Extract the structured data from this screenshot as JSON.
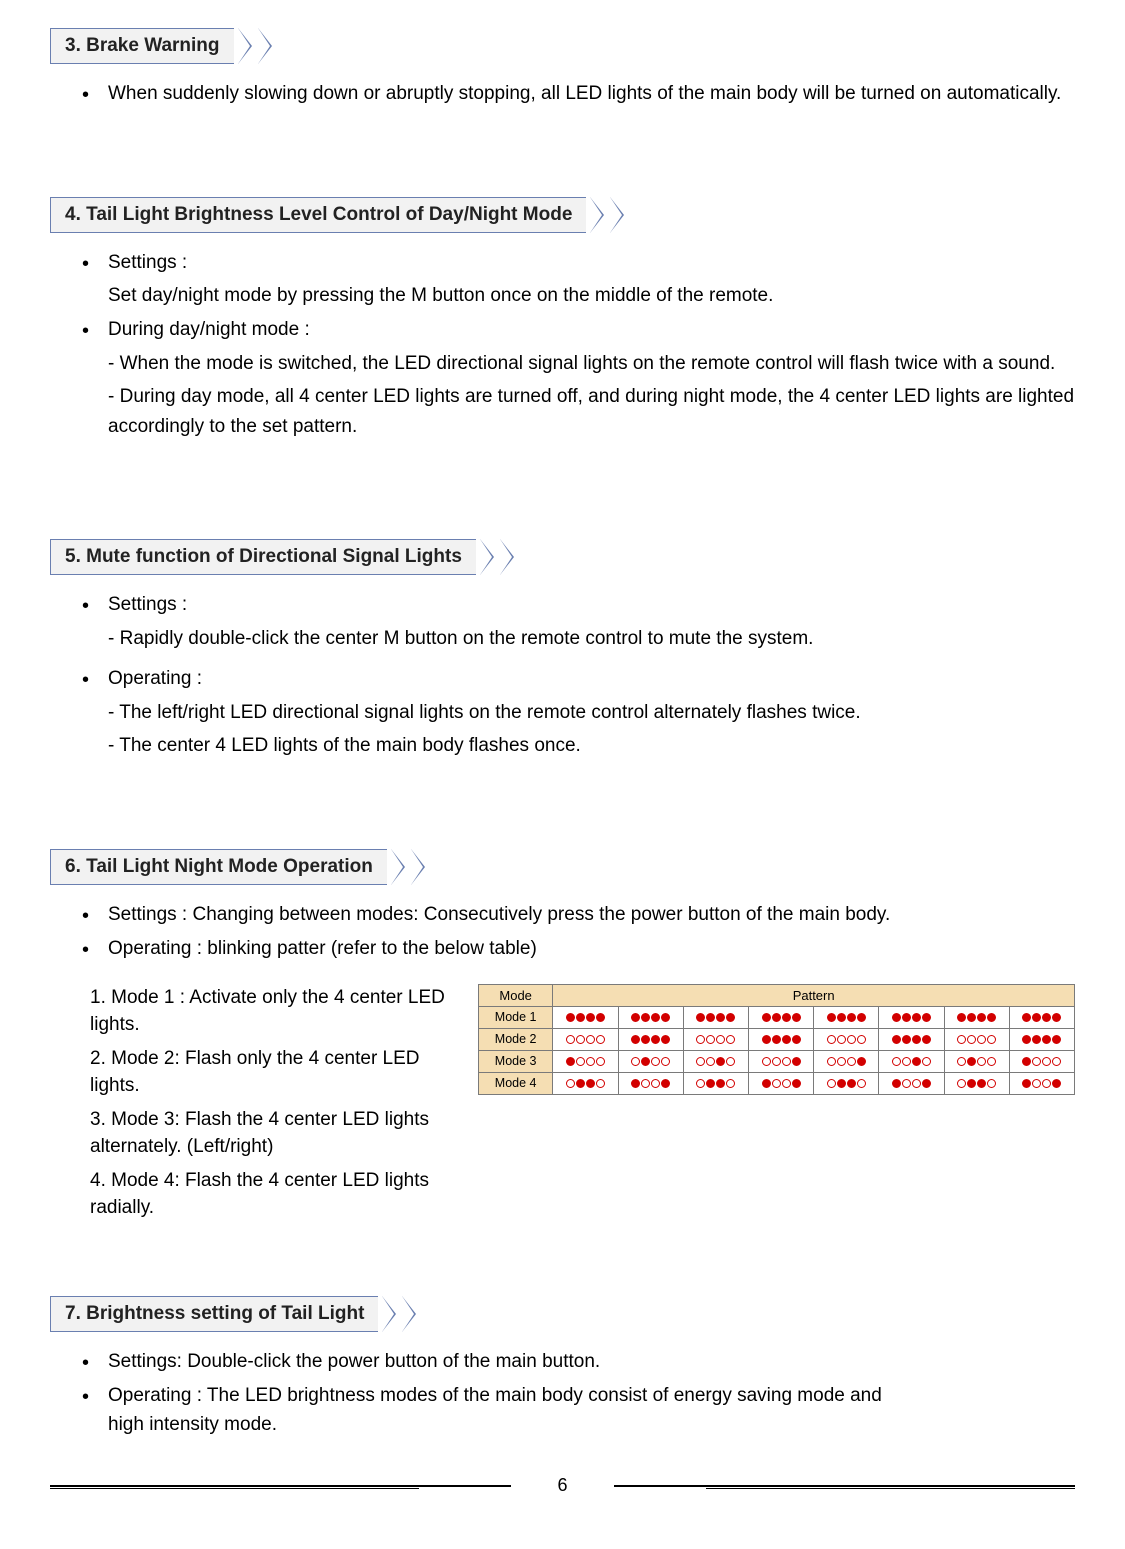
{
  "colors": {
    "header_border": "#6a7fb0",
    "header_bg": "#f2f2f2",
    "table_header_bg": "#f5deb3",
    "dot_red": "#d20000",
    "text": "#000000",
    "background": "#ffffff"
  },
  "page_number": "6",
  "sections": {
    "s3": {
      "title": "3. Brake Warning",
      "bullets": [
        {
          "text": "When suddenly slowing down or abruptly stopping, all LED lights of the main body will be turned on automatically."
        }
      ]
    },
    "s4": {
      "title": "4. Tail Light Brightness Level Control of Day/Night Mode",
      "bullets": [
        {
          "text": "Settings :",
          "sub": [
            "Set day/night mode by pressing the M button once on the middle of the remote."
          ]
        },
        {
          "text": "During day/night mode :",
          "sub": [
            "- When the mode is switched, the LED directional signal lights on the remote control will flash twice with a sound.",
            "- During day mode, all 4 center LED lights are turned off, and during night mode, the 4 center LED lights are lighted accordingly to the set pattern."
          ]
        }
      ]
    },
    "s5": {
      "title": "5. Mute function of Directional Signal Lights",
      "bullets": [
        {
          "text": "Settings :",
          "sub": [
            "- Rapidly double-click the center M button on the remote control to mute the system."
          ]
        },
        {
          "text": "Operating :",
          "sub": [
            "- The left/right LED directional signal lights on the remote control alternately flashes twice.",
            "- The center 4 LED lights of the main body flashes once."
          ]
        }
      ]
    },
    "s6": {
      "title": "6. Tail Light Night Mode Operation",
      "bullets": [
        {
          "text": "Settings : Changing between modes: Consecutively press the power button of the main body."
        },
        {
          "text": "Operating : blinking patter (refer to the below table)"
        }
      ],
      "left_items": [
        "1. Mode 1 : Activate only the 4 center LED lights.",
        "2. Mode 2: Flash only the 4 center LED lights.",
        "3. Mode 3: Flash the 4 center LED lights alternately. (Left/right)",
        "4. Mode 4: Flash the 4 center LED lights radially."
      ],
      "table": {
        "head_mode": "Mode",
        "head_pattern": "Pattern",
        "pattern_cols": 8,
        "rows": [
          {
            "label": "Mode 1",
            "cells": [
              [
                1,
                1,
                1,
                1
              ],
              [
                1,
                1,
                1,
                1
              ],
              [
                1,
                1,
                1,
                1
              ],
              [
                1,
                1,
                1,
                1
              ],
              [
                1,
                1,
                1,
                1
              ],
              [
                1,
                1,
                1,
                1
              ],
              [
                1,
                1,
                1,
                1
              ],
              [
                1,
                1,
                1,
                1
              ]
            ]
          },
          {
            "label": "Mode 2",
            "cells": [
              [
                0,
                0,
                0,
                0
              ],
              [
                1,
                1,
                1,
                1
              ],
              [
                0,
                0,
                0,
                0
              ],
              [
                1,
                1,
                1,
                1
              ],
              [
                0,
                0,
                0,
                0
              ],
              [
                1,
                1,
                1,
                1
              ],
              [
                0,
                0,
                0,
                0
              ],
              [
                1,
                1,
                1,
                1
              ]
            ]
          },
          {
            "label": "Mode 3",
            "cells": [
              [
                1,
                0,
                0,
                0
              ],
              [
                0,
                1,
                0,
                0
              ],
              [
                0,
                0,
                1,
                0
              ],
              [
                0,
                0,
                0,
                1
              ],
              [
                0,
                0,
                0,
                1
              ],
              [
                0,
                0,
                1,
                0
              ],
              [
                0,
                1,
                0,
                0
              ],
              [
                1,
                0,
                0,
                0
              ]
            ]
          },
          {
            "label": "Mode 4",
            "cells": [
              [
                0,
                1,
                1,
                0
              ],
              [
                1,
                0,
                0,
                1
              ],
              [
                0,
                1,
                1,
                0
              ],
              [
                1,
                0,
                0,
                1
              ],
              [
                0,
                1,
                1,
                0
              ],
              [
                1,
                0,
                0,
                1
              ],
              [
                0,
                1,
                1,
                0
              ],
              [
                1,
                0,
                0,
                1
              ]
            ]
          }
        ]
      }
    },
    "s7": {
      "title": "7. Brightness setting of Tail Light",
      "bullets": [
        {
          "text": "Settings: Double-click the power button of the main button."
        },
        {
          "text": "Operating : The LED brightness modes of the main body consist of energy saving mode and high intensity mode."
        }
      ]
    }
  }
}
